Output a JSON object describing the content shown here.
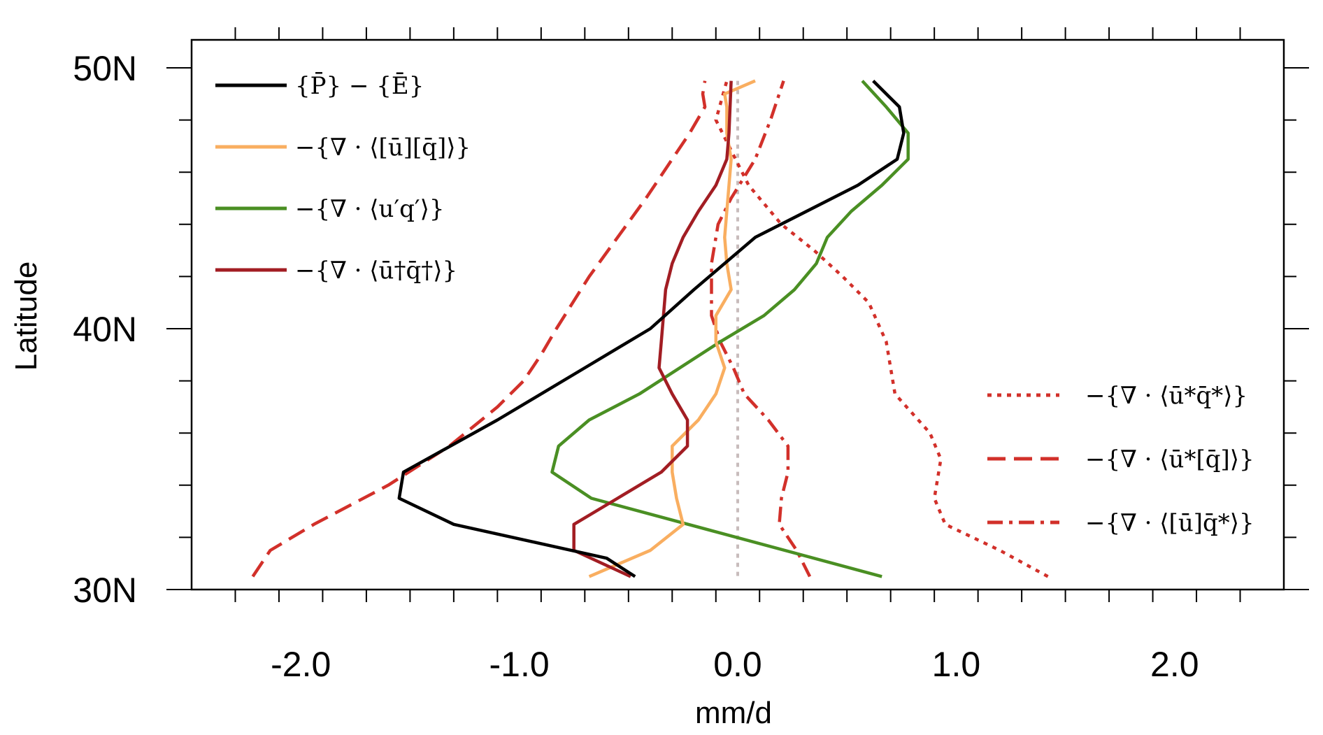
{
  "chart_data": {
    "type": "line",
    "xlabel": "mm/d",
    "ylabel": "Latitude",
    "xlim": [
      -2.5,
      2.5
    ],
    "ylim": [
      30,
      50
    ],
    "x_ticks": [
      -2.0,
      -1.0,
      0.0,
      1.0,
      2.0
    ],
    "x_tick_labels": [
      "-2.0",
      "-1.0",
      "0.0",
      "1.0",
      "2.0"
    ],
    "x_minor_step": 0.2,
    "y_ticks": [
      30,
      40,
      50
    ],
    "y_tick_labels": [
      "30N",
      "40N",
      "50N"
    ],
    "y_minor_step": 2,
    "reference_line": {
      "x": 0.0,
      "color": "#c8bcbc",
      "style": "dotted"
    },
    "series": [
      {
        "name": "{P̄} − {Ē}",
        "color": "#000000",
        "style": "solid",
        "x": [
          -0.47,
          -0.6,
          -1.3,
          -1.55,
          -1.53,
          -1.1,
          -0.9,
          -0.7,
          -0.4,
          -0.2,
          0.08,
          0.55,
          0.73,
          0.76,
          0.74,
          0.62
        ],
        "y": [
          30.5,
          31.2,
          32.5,
          33.5,
          34.5,
          36.5,
          37.5,
          38.5,
          40.0,
          41.5,
          43.5,
          45.5,
          46.5,
          47.5,
          48.5,
          49.5
        ]
      },
      {
        "name": "−{∇ · ⟨[ū][q̄]⟩}",
        "color": "#f9ae60",
        "style": "solid",
        "x": [
          -0.68,
          -0.4,
          -0.25,
          -0.28,
          -0.3,
          -0.3,
          -0.18,
          -0.1,
          -0.06,
          -0.1,
          -0.1,
          -0.03,
          -0.05,
          -0.06,
          -0.05,
          -0.04,
          -0.03,
          -0.05,
          -0.05,
          -0.06,
          0.08
        ],
        "y": [
          30.5,
          31.5,
          32.5,
          33.5,
          34.5,
          35.5,
          36.5,
          37.5,
          38.5,
          39.5,
          40.5,
          41.5,
          42.5,
          43.5,
          44.5,
          45.5,
          46.5,
          47.5,
          48.5,
          49.0,
          49.5
        ]
      },
      {
        "name": "−{∇ · ⟨u′q′⟩}",
        "color": "#4a8f23",
        "style": "solid",
        "x": [
          0.66,
          -0.67,
          -0.85,
          -0.82,
          -0.68,
          -0.45,
          -0.08,
          0.12,
          0.26,
          0.36,
          0.41,
          0.52,
          0.66,
          0.78,
          0.78,
          0.68,
          0.57
        ],
        "y": [
          30.5,
          33.5,
          34.5,
          35.5,
          36.5,
          37.5,
          39.5,
          40.5,
          41.5,
          42.5,
          43.5,
          44.5,
          45.5,
          46.5,
          47.5,
          48.5,
          49.5
        ]
      },
      {
        "name": "−{∇ · ⟨ū†q̄†⟩}",
        "color": "#a21d23",
        "style": "solid",
        "x": [
          -0.49,
          -0.75,
          -0.75,
          -0.55,
          -0.35,
          -0.23,
          -0.23,
          -0.3,
          -0.36,
          -0.35,
          -0.33,
          -0.3,
          -0.25,
          -0.18,
          -0.1,
          -0.05,
          -0.04,
          -0.03
        ],
        "y": [
          30.5,
          31.5,
          32.5,
          33.5,
          34.5,
          35.5,
          36.5,
          37.5,
          38.5,
          39.5,
          41.5,
          42.5,
          43.5,
          44.5,
          45.5,
          46.5,
          47.5,
          49.5
        ]
      },
      {
        "name": "−{∇ · ⟨ū*q̄*⟩}",
        "color": "#d2302a",
        "style": "dotted",
        "x": [
          1.42,
          1.2,
          0.95,
          0.9,
          0.93,
          0.88,
          0.72,
          0.68,
          0.6,
          0.48,
          0.35,
          0.2,
          0.05,
          -0.1,
          -0.05
        ],
        "y": [
          30.5,
          31.5,
          32.5,
          33.5,
          35.0,
          36.0,
          37.5,
          39.5,
          41.0,
          42.0,
          43.0,
          44.0,
          45.5,
          48.0,
          49.5
        ]
      },
      {
        "name": "−{∇ · ⟨ū*[q̄]⟩}",
        "color": "#d2302a",
        "style": "dashed",
        "x": [
          -2.22,
          -2.14,
          -1.94,
          -1.6,
          -1.32,
          -1.1,
          -0.98,
          -0.9,
          -0.83,
          -0.68,
          -0.55,
          -0.42,
          -0.3,
          -0.22,
          -0.15,
          -0.16,
          -0.15
        ],
        "y": [
          30.5,
          31.5,
          32.5,
          34.0,
          35.5,
          37.0,
          38.0,
          39.0,
          40.0,
          42.0,
          43.5,
          45.0,
          46.5,
          47.5,
          48.5,
          49.0,
          49.5
        ]
      },
      {
        "name": "−{∇ · ⟨[ū]q̄*⟩}",
        "color": "#d2302a",
        "style": "dashdot",
        "x": [
          0.33,
          0.27,
          0.19,
          0.2,
          0.23,
          0.23,
          0.14,
          0.03,
          -0.02,
          -0.08,
          -0.12,
          -0.12,
          -0.12,
          -0.09,
          -0.03,
          0.08,
          0.15,
          0.21
        ],
        "y": [
          30.5,
          31.5,
          32.5,
          33.5,
          34.5,
          35.5,
          36.5,
          37.5,
          38.5,
          39.5,
          40.5,
          41.5,
          42.5,
          44.0,
          45.0,
          46.5,
          48.0,
          49.5
        ]
      }
    ],
    "legend_placement": [
      "top-left",
      "bottom-right"
    ]
  }
}
